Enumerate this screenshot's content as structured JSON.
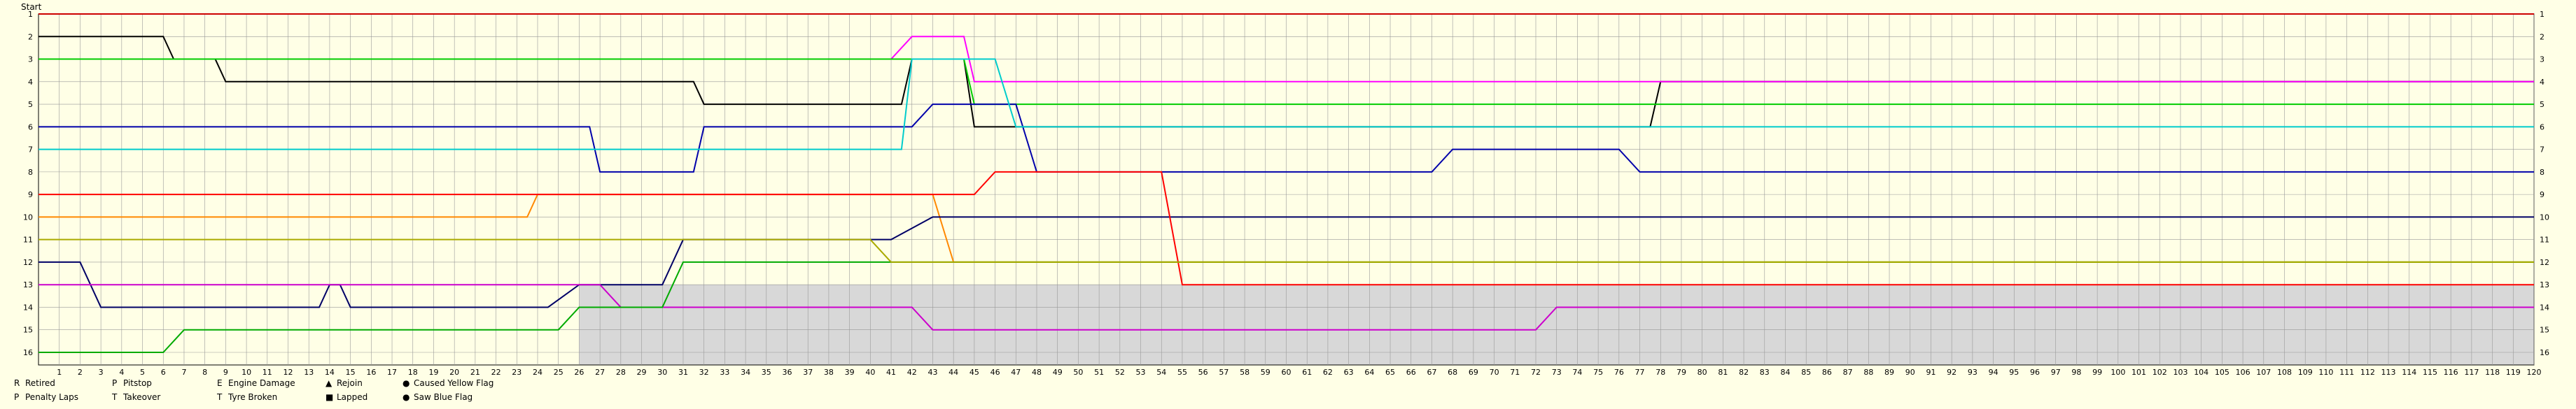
{
  "chart_data": {
    "type": "line",
    "title": "",
    "start_label": "Start",
    "x_ticks": [
      1,
      2,
      3,
      4,
      5,
      6,
      7,
      8,
      9,
      10,
      11,
      12,
      13,
      14,
      15,
      16,
      17,
      18,
      19,
      20,
      21,
      22,
      23,
      24,
      25,
      26,
      27,
      28,
      29,
      30,
      31,
      32,
      33,
      34,
      35,
      36,
      37,
      38,
      39,
      40,
      41,
      42,
      43,
      44,
      45,
      46,
      47,
      48,
      49,
      50,
      51,
      52,
      53,
      54,
      55,
      56,
      57,
      58,
      59,
      60,
      61,
      62,
      63,
      64,
      65,
      66,
      67,
      68,
      69,
      70,
      71,
      72,
      73,
      74,
      75,
      76,
      77,
      78,
      79,
      80,
      81,
      82,
      83,
      84,
      85,
      86,
      87,
      88,
      89,
      90,
      91,
      92,
      93,
      94,
      95,
      96,
      97,
      98,
      99,
      100,
      101,
      102,
      103,
      104,
      105,
      106,
      107,
      108,
      109,
      110,
      111,
      112,
      113,
      114,
      115,
      116,
      117,
      118,
      119,
      120
    ],
    "y_ticks": [
      1,
      2,
      3,
      4,
      5,
      6,
      7,
      8,
      9,
      10,
      11,
      12,
      13,
      14,
      15,
      16
    ],
    "xlim": [
      0,
      120
    ],
    "ylim": [
      1,
      16
    ],
    "grid": true,
    "series": [
      {
        "color": "#cc0000",
        "x": [
          0,
          120
        ],
        "y": [
          1,
          1
        ]
      },
      {
        "color": "#000000",
        "x": [
          0,
          6,
          6.5,
          8.5,
          9,
          31.5,
          32,
          41.5,
          42,
          44.5,
          45,
          77.5,
          78,
          120
        ],
        "y": [
          2,
          2,
          3,
          3,
          4,
          4,
          5,
          5,
          3,
          3,
          6,
          6,
          4,
          4
        ]
      },
      {
        "color": "#ff00ff",
        "x": [
          0,
          1,
          2,
          41,
          42,
          44.5,
          45,
          49,
          120
        ],
        "y": [
          3,
          3,
          3,
          3,
          2,
          2,
          4,
          4,
          4
        ]
      },
      {
        "color": "#00cc00",
        "x": [
          0,
          8.5,
          9,
          31.5,
          32,
          44.5,
          45,
          77,
          78,
          91,
          92,
          120
        ],
        "y": [
          3,
          3,
          3,
          3,
          3,
          3,
          5,
          5,
          5,
          5,
          5,
          5
        ]
      },
      {
        "color": "#0000aa",
        "x": [
          0,
          26.5,
          27,
          31.5,
          32,
          42,
          43,
          47,
          48,
          67,
          68,
          76,
          77,
          120
        ],
        "y": [
          6,
          6,
          8,
          8,
          6,
          6,
          5,
          5,
          8,
          8,
          7,
          7,
          8,
          8
        ]
      },
      {
        "color": "#00cccc",
        "x": [
          0,
          24,
          25,
          41.5,
          42,
          46,
          47,
          120
        ],
        "y": [
          7,
          7,
          7,
          7,
          3,
          3,
          6,
          6
        ]
      },
      {
        "color": "#ff8800",
        "x": [
          0,
          23.5,
          24,
          43,
          44,
          120
        ],
        "y": [
          10,
          10,
          9,
          9,
          12,
          12
        ]
      },
      {
        "color": "#000066",
        "x": [
          0,
          2,
          3,
          13.5,
          14,
          14.5,
          15,
          24.5,
          26,
          30,
          31,
          41,
          43,
          120
        ],
        "y": [
          12,
          12,
          14,
          14,
          13,
          13,
          14,
          14,
          13,
          13,
          11,
          11,
          10,
          10
        ]
      },
      {
        "color": "#ff0000",
        "x": [
          0,
          45,
          46,
          54,
          55,
          120
        ],
        "y": [
          9,
          9,
          8,
          8,
          13,
          13
        ]
      },
      {
        "color": "#cc00cc",
        "x": [
          0,
          27,
          28,
          42,
          43,
          72,
          73,
          120
        ],
        "y": [
          13,
          13,
          14,
          14,
          15,
          15,
          14,
          14
        ]
      },
      {
        "color": "#00aa00",
        "x": [
          0,
          6,
          7,
          25,
          26,
          30,
          31,
          120
        ],
        "y": [
          16,
          16,
          15,
          15,
          14,
          14,
          12,
          12
        ]
      },
      {
        "color": "#aaaa00",
        "x": [
          0,
          1,
          2,
          40,
          41,
          120
        ],
        "y": [
          11,
          11,
          11,
          11,
          12,
          12
        ]
      }
    ],
    "legend": [
      "Retired",
      "Pitstop",
      "Engine Damage",
      "Rejoin",
      "Caused Yellow Flag",
      "Penalty Laps",
      "Takeover",
      "Tyre Broken",
      "Lapped",
      "Saw Blue Flag"
    ],
    "legend_symbols": [
      "R",
      "P",
      "E",
      "▲",
      "●",
      "P",
      "T",
      "T",
      "■",
      "●"
    ],
    "legend_colors": [
      "#000000",
      "#000000",
      "#000000",
      "#000000",
      "#ffaa00",
      "#000000",
      "#000000",
      "#000000",
      "#aaaaaa",
      "#0000cc"
    ],
    "legend_placement": "bottom-left"
  }
}
